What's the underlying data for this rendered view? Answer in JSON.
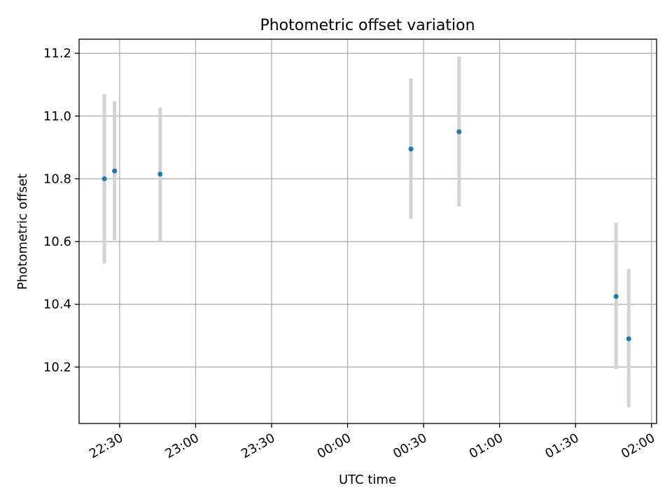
{
  "chart_data": {
    "type": "scatter",
    "title": "Photometric offset variation",
    "xlabel": "UTC time",
    "ylabel": "Photometric offset",
    "x_tick_labels": [
      "22:30",
      "23:00",
      "23:30",
      "00:00",
      "00:30",
      "01:00",
      "01:30",
      "02:00"
    ],
    "y_tick_labels": [
      "10.2",
      "10.4",
      "10.6",
      "10.8",
      "11.0",
      "11.2"
    ],
    "x_ticks": [
      "2000-01-01T22:30",
      "2000-01-01T23:00",
      "2000-01-01T23:30",
      "2000-01-02T00:00",
      "2000-01-02T00:30",
      "2000-01-02T01:00",
      "2000-01-02T01:30",
      "2000-01-02T02:00"
    ],
    "y_ticks": [
      10.2,
      10.4,
      10.6,
      10.8,
      11.0,
      11.2
    ],
    "xlim": [
      "2000-01-01T22:14",
      "2000-01-02T02:02"
    ],
    "ylim": [
      10.02,
      11.245
    ],
    "grid": true,
    "points": [
      {
        "x": "2000-01-01T22:24",
        "y": 10.8,
        "y_low": 10.53,
        "y_high": 11.07
      },
      {
        "x": "2000-01-01T22:28",
        "y": 10.825,
        "y_low": 10.605,
        "y_high": 11.048
      },
      {
        "x": "2000-01-01T22:46",
        "y": 10.815,
        "y_low": 10.6,
        "y_high": 11.027
      },
      {
        "x": "2000-01-02T00:25",
        "y": 10.895,
        "y_low": 10.672,
        "y_high": 11.12
      },
      {
        "x": "2000-01-02T00:44",
        "y": 10.95,
        "y_low": 10.712,
        "y_high": 11.19
      },
      {
        "x": "2000-01-02T01:46",
        "y": 10.425,
        "y_low": 10.193,
        "y_high": 10.66
      },
      {
        "x": "2000-01-02T01:51",
        "y": 10.29,
        "y_low": 10.072,
        "y_high": 10.512
      }
    ],
    "colors": {
      "marker": "#1f77b4",
      "errorbar": "#d3d3d3",
      "grid": "#b0b0b0"
    }
  }
}
